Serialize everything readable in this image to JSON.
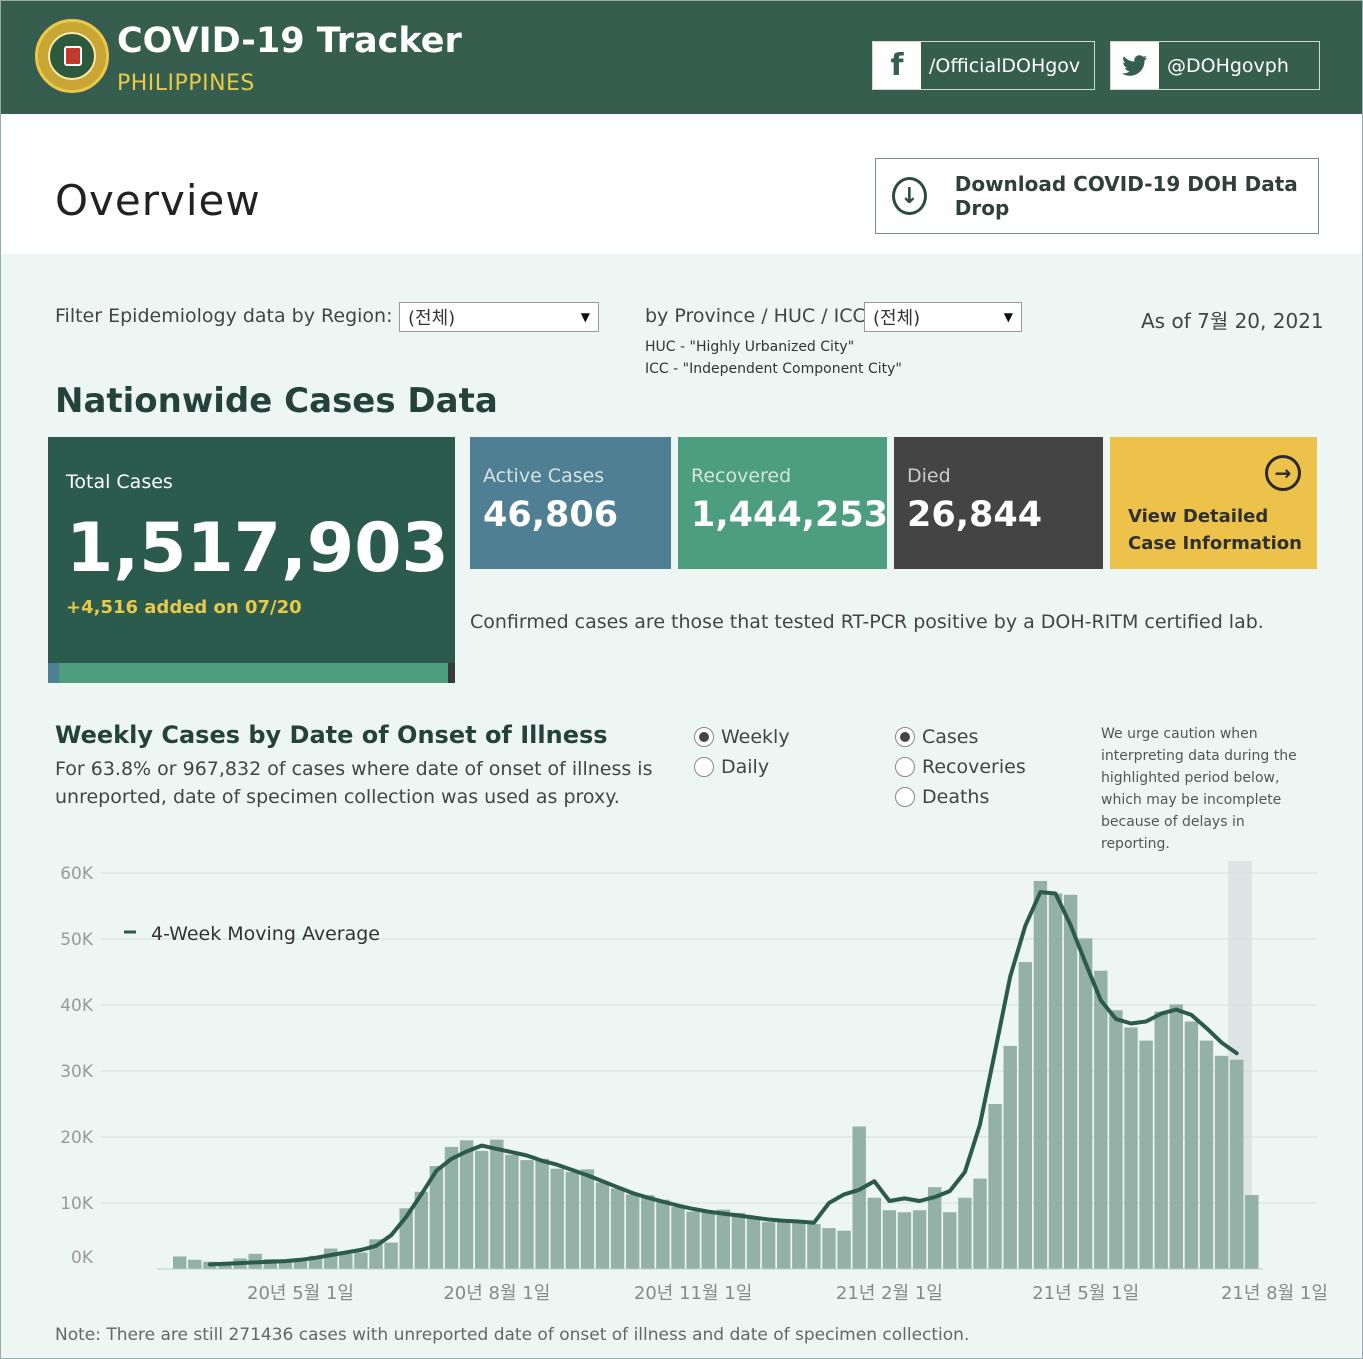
{
  "header": {
    "title": "COVID-19 Tracker",
    "subtitle": "PHILIPPINES",
    "facebook": "/OfficialDOHgov",
    "twitter": "@DOHgovph",
    "facebook_icon": "facebook-icon",
    "twitter_icon": "twitter-icon"
  },
  "overview": {
    "title": "Overview",
    "download_label": "Download COVID-19 DOH Data Drop"
  },
  "filters": {
    "region_label": "Filter Epidemiology data by Region:",
    "region_value": "(전체)",
    "province_label": "by Province / HUC / ICC:",
    "province_value": "(전체)",
    "huc_note": "HUC - \"Highly Urbanized City\"",
    "icc_note": "ICC - \"Independent Component City\"",
    "as_of": "As of 7월 20, 2021"
  },
  "nationwide": {
    "title": "Nationwide Cases Data",
    "total_label": "Total Cases",
    "total_value": "1,517,903",
    "total_delta": "+4,516 added on 07/20",
    "active_label": "Active Cases",
    "active_value": "46,806",
    "recovered_label": "Recovered",
    "recovered_value": "1,444,253",
    "died_label": "Died",
    "died_value": "26,844",
    "detail_label": "View Detailed Case Information",
    "confirm_note": "Confirmed cases are those that tested RT-PCR positive by a DOH-RITM certified lab.",
    "colors": {
      "total": "#2a5b4c",
      "active": "#4f7f93",
      "recovered": "#4d9e80",
      "died": "#444444",
      "detail": "#ecc24a"
    }
  },
  "weekly": {
    "title": "Weekly Cases by Date of Onset of Illness",
    "subtitle": "For 63.8% or 967,832 of cases where date of onset of illness is unreported, date of specimen collection was used as proxy.",
    "period_options": [
      {
        "label": "Weekly",
        "selected": true
      },
      {
        "label": "Daily",
        "selected": false
      }
    ],
    "metric_options": [
      {
        "label": "Cases",
        "selected": true
      },
      {
        "label": "Recoveries",
        "selected": false
      },
      {
        "label": "Deaths",
        "selected": false
      }
    ],
    "caution": "We urge caution when interpreting data during the highlighted period below, which may be incomplete because of delays in reporting.",
    "footnote": "Note: There are still 271436 cases with unreported date of onset of illness and date of specimen collection."
  },
  "chart_data": {
    "type": "bar",
    "title": "",
    "xlabel": "",
    "ylabel": "",
    "ylim": [
      0,
      60000
    ],
    "y_ticks": [
      "0K",
      "10K",
      "20K",
      "30K",
      "40K",
      "50K",
      "60K"
    ],
    "x_tick_labels": [
      "20년 5월 1일",
      "20년 8월 1일",
      "20년 11월 1일",
      "21년 2월 1일",
      "21년 5월 1일",
      "21년 8월 1일"
    ],
    "x_tick_index": [
      8,
      21,
      34,
      47,
      60,
      72.5
    ],
    "grid": true,
    "highlighted_period_index": 70,
    "bar_color": "#93b1a6",
    "line_color": "#2a5b4c",
    "series": [
      {
        "name": "",
        "values": [
          1900,
          1400,
          1100,
          1000,
          1600,
          2300,
          1500,
          1400,
          1600,
          2000,
          3100,
          2300,
          2500,
          4500,
          4000,
          9200,
          11700,
          15600,
          18500,
          19500,
          17900,
          19600,
          17300,
          16500,
          16700,
          15200,
          14700,
          15100,
          13100,
          12200,
          11300,
          11200,
          10500,
          9400,
          8700,
          8800,
          9000,
          8500,
          7600,
          7100,
          7200,
          7300,
          6800,
          6200,
          5800,
          21600,
          10800,
          8900,
          8600,
          8900,
          12400,
          8600,
          10800,
          13700,
          25000,
          33800,
          46500,
          58800,
          56900,
          56700,
          50100,
          45200,
          39200,
          36600,
          34600,
          39000,
          40100,
          37500,
          34600,
          32300,
          31700,
          11200
        ]
      },
      {
        "name": "4-Week Moving Average",
        "values": [
          null,
          null,
          700,
          800,
          900,
          1000,
          1100,
          1200,
          1400,
          1700,
          2100,
          2500,
          2900,
          3500,
          5100,
          7900,
          11300,
          14900,
          16700,
          17800,
          18700,
          18200,
          17700,
          17200,
          16400,
          15800,
          15000,
          14200,
          13300,
          12400,
          11500,
          10800,
          10200,
          9600,
          9100,
          8700,
          8400,
          8100,
          7800,
          7500,
          7300,
          7200,
          7000,
          10000,
          11300,
          12000,
          13300,
          10300,
          10700,
          10300,
          10900,
          11800,
          14700,
          21900,
          33000,
          44300,
          52000,
          57100,
          56900,
          52100,
          46300,
          40700,
          37900,
          37200,
          37500,
          38700,
          39300,
          38500,
          36500,
          34300,
          32700
        ]
      }
    ]
  }
}
